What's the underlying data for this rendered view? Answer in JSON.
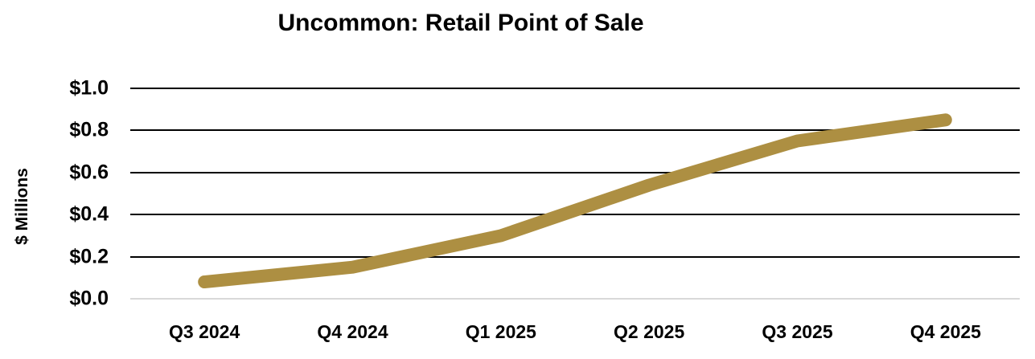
{
  "title": "Uncommon: Retail Point of Sale",
  "colors": {
    "line": "#AD8F42",
    "gridline": "#000000",
    "zero_gridline": "#D9D9D9",
    "text": "#000000"
  },
  "chart_data": {
    "type": "line",
    "title": "Uncommon: Retail Point of Sale",
    "xlabel": "",
    "ylabel": "$ Millions",
    "categories": [
      "Q3 2024",
      "Q4 2024",
      "Q1 2025",
      "Q2 2025",
      "Q3 2025",
      "Q4 2025"
    ],
    "values": [
      0.08,
      0.15,
      0.3,
      0.54,
      0.75,
      0.85
    ],
    "ylim": [
      0.0,
      1.0
    ],
    "yticks": [
      {
        "v": 0.0,
        "label": "$0.0"
      },
      {
        "v": 0.2,
        "label": "$0.2"
      },
      {
        "v": 0.4,
        "label": "$0.4"
      },
      {
        "v": 0.6,
        "label": "$0.6"
      },
      {
        "v": 0.8,
        "label": "$0.8"
      },
      {
        "v": 1.0,
        "label": "$1.0"
      }
    ],
    "grid": true,
    "legend": false,
    "line_color": "#AD8F42",
    "gridline_color": "#000000",
    "zero_gridline_color": "#D9D9D9"
  }
}
